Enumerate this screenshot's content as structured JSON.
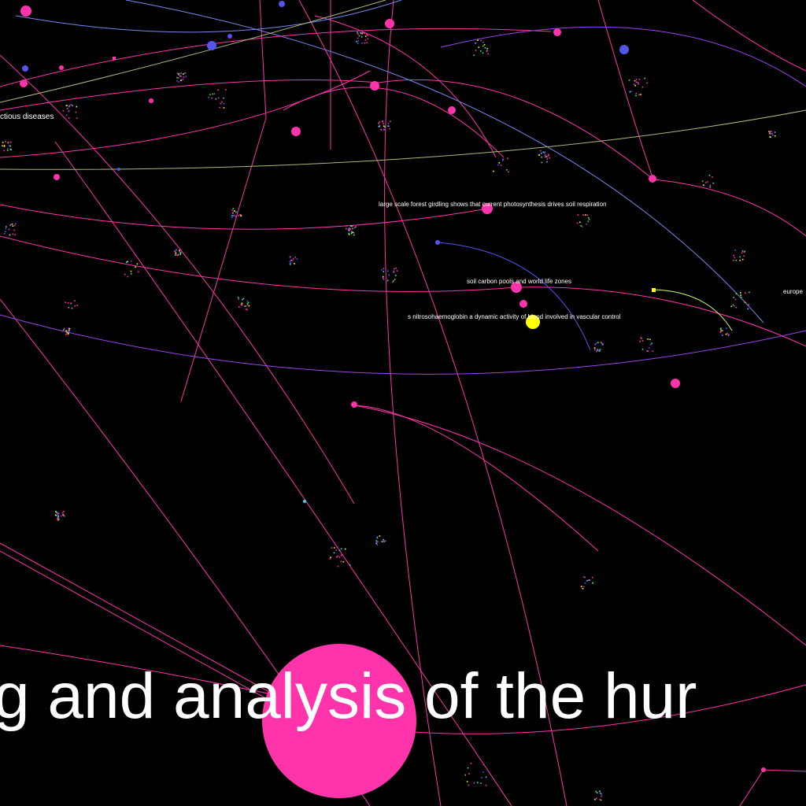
{
  "labels": {
    "infectious_diseases": "ctious diseases",
    "forest_girdling": "large scale forest girdling shows that current photosynthesis drives soil respiration",
    "soil_carbon": "soil carbon pools and world life zones",
    "nitrosohaemoglobin": "s nitrosohaemoglobin a dynamic activity of blood involved in vascular control",
    "europe": "europe",
    "big_title": "g and analysis of the hur"
  },
  "colors": {
    "background": "#000000",
    "magenta": "#ff33aa",
    "blue": "#5555ee",
    "violet": "#9944ee",
    "yellow": "#ffff00",
    "lime": "#ccff66",
    "cyan": "#33ddee",
    "green": "#44ee44",
    "label": "#ffffff"
  }
}
